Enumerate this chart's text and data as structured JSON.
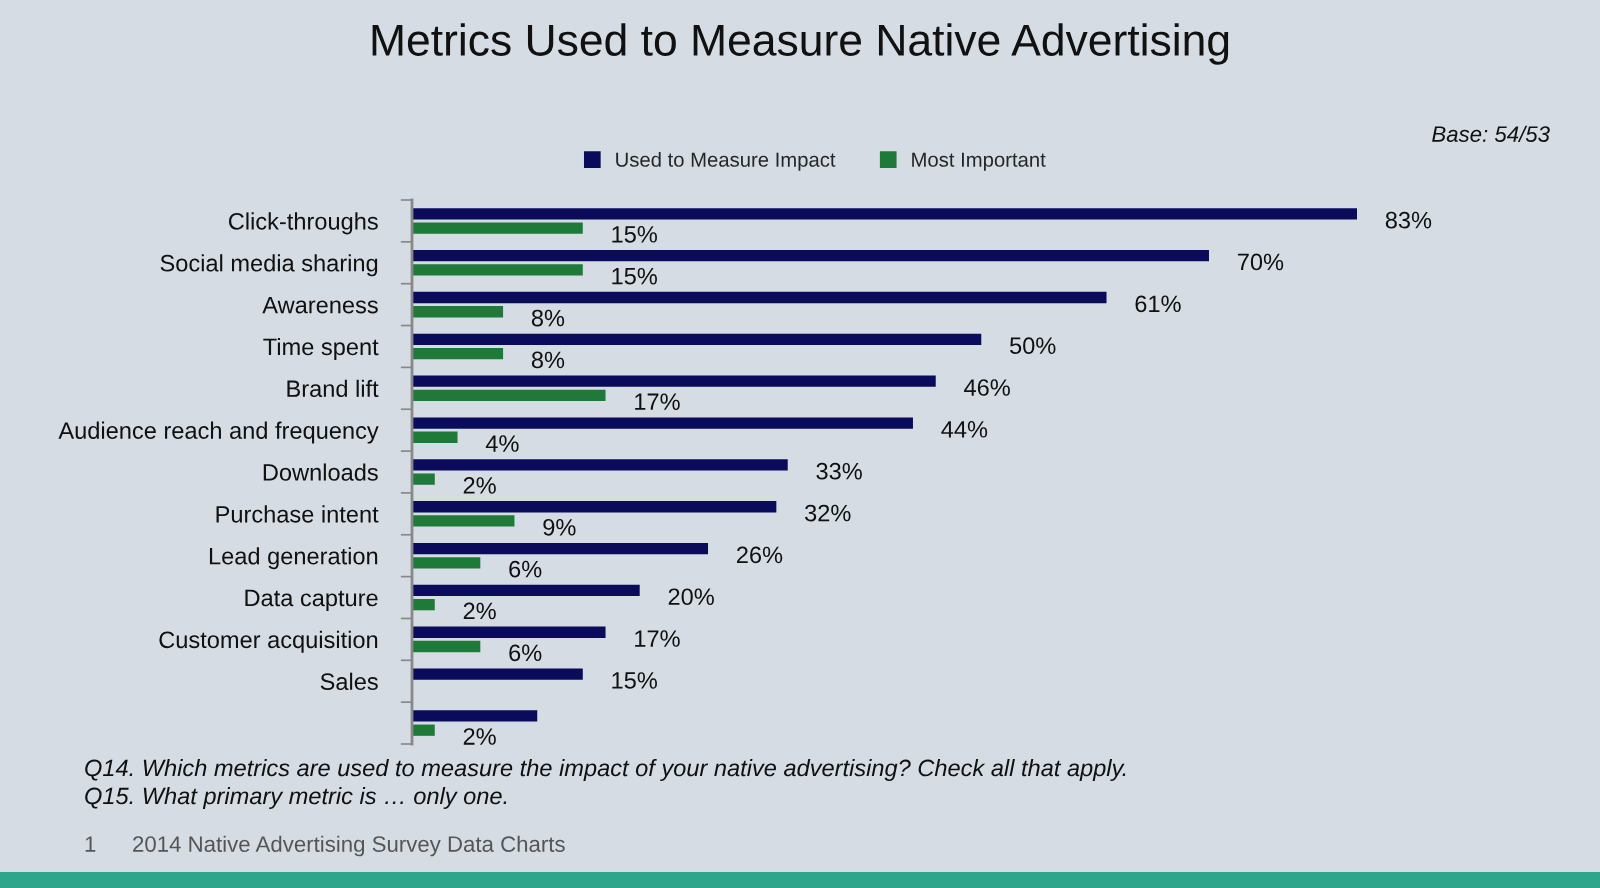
{
  "chart_data": {
    "type": "bar",
    "orientation": "horizontal",
    "title": "Metrics Used to Measure Native Advertising",
    "categories": [
      "Click-throughs",
      "Social media sharing",
      "Awareness",
      "Time spent",
      "Brand lift",
      "Audience reach and frequency",
      "Downloads",
      "Purchase intent",
      "Lead generation",
      "Data capture",
      "Customer acquisition",
      "Sales",
      null
    ],
    "series": [
      {
        "name": "Used to Measure Impact",
        "color": "#0b0b5c",
        "values": [
          83,
          70,
          61,
          50,
          46,
          44,
          33,
          32,
          26,
          20,
          17,
          15,
          11
        ],
        "value_labels": [
          "83%",
          "70%",
          "61%",
          "50%",
          "46%",
          "44%",
          "33%",
          "32%",
          "26%",
          "20%",
          "17%",
          "15%",
          null
        ]
      },
      {
        "name": "Most Important",
        "color": "#1f7a3a",
        "values": [
          15,
          15,
          8,
          8,
          17,
          4,
          2,
          9,
          6,
          2,
          6,
          null,
          2
        ],
        "value_labels": [
          "15%",
          "15%",
          "8%",
          "8%",
          "17%",
          "4%",
          "2%",
          "9%",
          "6%",
          "2%",
          "6%",
          null,
          "2%"
        ]
      }
    ],
    "legend": "top",
    "tick_labels": "y",
    "annotations": [
      "Base: 54/53",
      "Q14. Which metrics are used to measure the impact of your native advertising? Check all that apply.",
      "Q15. What primary metric is … only one.",
      "1",
      "2014 Native Advertising Survey Data Charts"
    ]
  }
}
